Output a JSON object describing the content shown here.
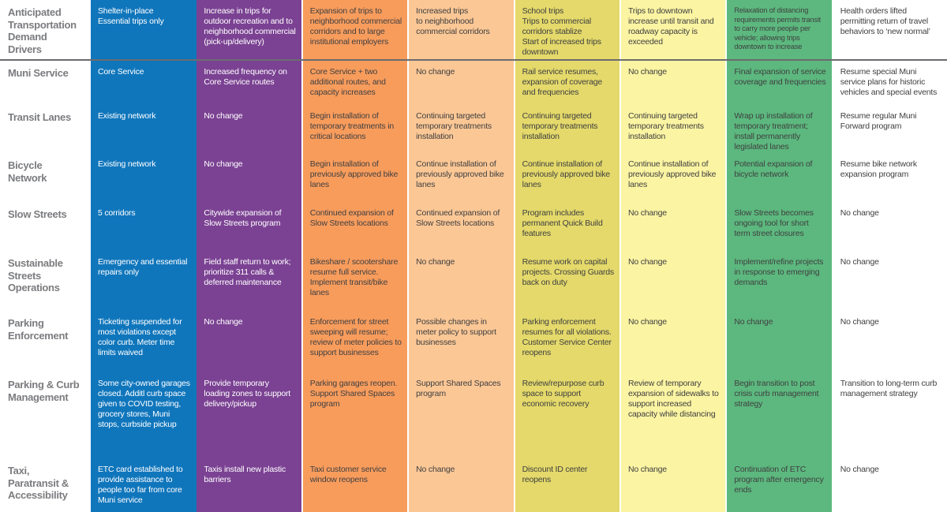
{
  "matrix": {
    "corner": {
      "label": "Anticipated\nTransportation\nDemand\nDrivers"
    },
    "phases": [
      {
        "name": "phase-1",
        "color": "#1076bc",
        "text": "#ffffff",
        "header": "Shelter-in-place\nEssential trips only"
      },
      {
        "name": "phase-2",
        "color": "#7b4293",
        "text": "#ffffff",
        "header": "Increase in trips for outdoor recreation and to neighborhood commercial (pick-up/delivery)"
      },
      {
        "name": "phase-3",
        "color": "#f89c5c",
        "text": "#404041",
        "header": "Expansion of trips to neighborhood commercial corridors and to large institutional employers"
      },
      {
        "name": "phase-4",
        "color": "#fbc795",
        "text": "#404041",
        "header": "Increased trips\nto neighborhood\ncommercial corridors"
      },
      {
        "name": "phase-5",
        "color": "#e4d96a",
        "text": "#404041",
        "header": "School trips\nTrips to commercial corridors stablize\nStart of increased trips downtown"
      },
      {
        "name": "phase-6",
        "color": "#fbf4a2",
        "text": "#404041",
        "header": "Trips to downtown increase until transit and roadway capacity is exceeded"
      },
      {
        "name": "phase-7",
        "color": "#5cb87e",
        "text": "#404041",
        "header_small": true,
        "header": "Relaxation of distancing requirements permits transit to carry more people per vehicle; allowing trips downtown to increase"
      },
      {
        "name": "phase-8",
        "color": "#ffffff",
        "text": "#404041",
        "header": "Health orders lifted permitting return of travel behaviors to ‘new normal’"
      }
    ],
    "rows": [
      {
        "label": "Muni Service",
        "cells": [
          "Core Service",
          "Increased frequency on Core Service routes",
          "Core Service + two additional routes, and capacity increases",
          "No change",
          "Rail service resumes, expansion of coverage and frequencies",
          "No change",
          "Final expansion of service coverage and frequencies",
          "Resume special Muni service plans for historic vehicles and special events"
        ]
      },
      {
        "label": "Transit Lanes",
        "cells": [
          "Existing network",
          "No change",
          "Begin installation of temporary treatments in critical locations",
          "Continuing targeted temporary treatments installation",
          "Continuing targeted temporary treatments installation",
          "Continuing targeted temporary treatments installation",
          "Wrap up installation of temporary treatment; install permanently legislated lanes",
          "Resume regular Muni Forward program"
        ]
      },
      {
        "label": "Bicycle\nNetwork",
        "cells": [
          "Existing network",
          "No change",
          "Begin installation of previously approved bike lanes",
          "Continue installation of previously approved bike lanes",
          "Continue installation of previously approved bike lanes",
          "Continue installation of previously approved bike lanes",
          "Potential expansion of bicycle network",
          "Resume bike network expansion program"
        ]
      },
      {
        "label": "Slow Streets",
        "cells": [
          "5 corridors",
          "Citywide expansion of Slow Streets program",
          "Continued expansion of Slow Streets locations",
          "Continued expansion of Slow Streets locations",
          "Program includes permanent Quick Build features",
          "No change",
          "Slow Streets becomes ongoing tool for short term street closures",
          "No change"
        ]
      },
      {
        "label": "Sustainable\nStreets\nOperations",
        "cells": [
          "Emergency and essential repairs only",
          "Field staff return to work; prioritize 311 calls & deferred maintenance",
          "Bikeshare / scootershare resume full service. Implement transit/bike lanes",
          "No change",
          "Resume work on capital projects. Crossing Guards back on duty",
          "No change",
          "Implement/refine projects in response to emerging demands",
          "No change"
        ]
      },
      {
        "label": "Parking\nEnforcement",
        "cells": [
          "Ticketing suspended for most violations except color curb. Meter time limits waived",
          "No change",
          "Enforcement for street sweeping will resume; review of meter policies to support businesses",
          "Possible changes in meter policy to support businesses",
          "Parking enforcement resumes for all violations. Customer Service Center reopens",
          "No change",
          "No change",
          "No change"
        ]
      },
      {
        "label": "Parking & Curb\nManagement",
        "cells": [
          "Some city-owned garages closed. Additl curb space given to COVID testing, grocery stores, Muni stops, curbside pickup",
          "Provide temporary loading zones to support delivery/pickup",
          "Parking garages reopen. Support Shared Spaces program",
          "Support Shared Spaces program",
          "Review/repurpose curb space to support economic recovery",
          "Review of temporary expansion of sidewalks to support increased capacity while distancing",
          "Begin transition to post crisis curb management strategy",
          "Transition to long-term curb management strategy"
        ]
      },
      {
        "label": "Taxi,\nParatransit &\nAccessibility",
        "cells": [
          "ETC card established to provide assistance to people too far from core Muni service",
          "Taxis install new plastic barriers",
          "Taxi customer service window reopens",
          "No change",
          "Discount ID center reopens",
          "No change",
          "Continuation of ETC program after emergency ends",
          "No change"
        ]
      }
    ]
  }
}
